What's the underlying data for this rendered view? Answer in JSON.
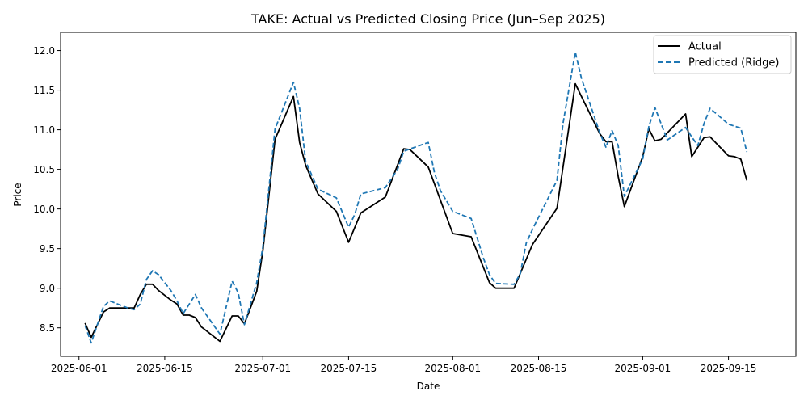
{
  "chart_data": {
    "type": "line",
    "title": "TAKE: Actual vs Predicted Closing Price (Jun–Sep 2025)",
    "xlabel": "Date",
    "ylabel": "Price",
    "xlim": [
      "2025-05-29",
      "2025-09-26"
    ],
    "ylim": [
      8.14,
      12.23
    ],
    "x_ticks": [
      "2025-06-01",
      "2025-06-15",
      "2025-07-01",
      "2025-07-15",
      "2025-08-01",
      "2025-08-15",
      "2025-09-01",
      "2025-09-15"
    ],
    "y_ticks": [
      8.5,
      9.0,
      9.5,
      10.0,
      10.5,
      11.0,
      11.5,
      12.0
    ],
    "y_tick_labels": [
      "8.5",
      "9.0",
      "9.5",
      "10.0",
      "10.5",
      "11.0",
      "11.5",
      "12.0"
    ],
    "grid": false,
    "legend_position": "top-right",
    "series": [
      {
        "name": "Actual",
        "color": "#000000",
        "style": "solid",
        "points": [
          [
            "2025-06-02",
            8.56
          ],
          [
            "2025-06-03",
            8.38
          ],
          [
            "2025-06-05",
            8.7
          ],
          [
            "2025-06-06",
            8.75
          ],
          [
            "2025-06-09",
            8.75
          ],
          [
            "2025-06-10",
            8.75
          ],
          [
            "2025-06-11",
            8.92
          ],
          [
            "2025-06-12",
            9.05
          ],
          [
            "2025-06-13",
            9.05
          ],
          [
            "2025-06-14",
            8.97
          ],
          [
            "2025-06-16",
            8.85
          ],
          [
            "2025-06-17",
            8.8
          ],
          [
            "2025-06-18",
            8.66
          ],
          [
            "2025-06-19",
            8.66
          ],
          [
            "2025-06-20",
            8.63
          ],
          [
            "2025-06-21",
            8.51
          ],
          [
            "2025-06-24",
            8.33
          ],
          [
            "2025-06-26",
            8.65
          ],
          [
            "2025-06-27",
            8.65
          ],
          [
            "2025-06-28",
            8.55
          ],
          [
            "2025-06-30",
            8.96
          ],
          [
            "2025-07-01",
            9.47
          ],
          [
            "2025-07-03",
            10.88
          ],
          [
            "2025-07-06",
            11.42
          ],
          [
            "2025-07-07",
            10.84
          ],
          [
            "2025-07-08",
            10.55
          ],
          [
            "2025-07-10",
            10.19
          ],
          [
            "2025-07-13",
            9.97
          ],
          [
            "2025-07-15",
            9.58
          ],
          [
            "2025-07-17",
            9.95
          ],
          [
            "2025-07-21",
            10.15
          ],
          [
            "2025-07-24",
            10.76
          ],
          [
            "2025-07-25",
            10.75
          ],
          [
            "2025-07-28",
            10.53
          ],
          [
            "2025-08-01",
            9.69
          ],
          [
            "2025-08-04",
            9.65
          ],
          [
            "2025-08-07",
            9.07
          ],
          [
            "2025-08-08",
            9.0
          ],
          [
            "2025-08-11",
            9.0
          ],
          [
            "2025-08-14",
            9.55
          ],
          [
            "2025-08-18",
            10.01
          ],
          [
            "2025-08-21",
            11.58
          ],
          [
            "2025-08-22",
            11.42
          ],
          [
            "2025-08-25",
            10.95
          ],
          [
            "2025-08-26",
            10.85
          ],
          [
            "2025-08-27",
            10.85
          ],
          [
            "2025-08-28",
            10.41
          ],
          [
            "2025-08-29",
            10.03
          ],
          [
            "2025-09-01",
            10.66
          ],
          [
            "2025-09-02",
            11.01
          ],
          [
            "2025-09-03",
            10.86
          ],
          [
            "2025-09-04",
            10.88
          ],
          [
            "2025-09-08",
            11.2
          ],
          [
            "2025-09-09",
            10.66
          ],
          [
            "2025-09-11",
            10.9
          ],
          [
            "2025-09-12",
            10.91
          ],
          [
            "2025-09-15",
            10.67
          ],
          [
            "2025-09-16",
            10.66
          ],
          [
            "2025-09-17",
            10.63
          ],
          [
            "2025-09-18",
            10.36
          ]
        ]
      },
      {
        "name": "Predicted (Ridge)",
        "color": "#1f77b4",
        "style": "dashed",
        "points": [
          [
            "2025-06-02",
            8.53
          ],
          [
            "2025-06-03",
            8.31
          ],
          [
            "2025-06-05",
            8.77
          ],
          [
            "2025-06-06",
            8.84
          ],
          [
            "2025-06-09",
            8.75
          ],
          [
            "2025-06-10",
            8.73
          ],
          [
            "2025-06-11",
            8.8
          ],
          [
            "2025-06-12",
            9.11
          ],
          [
            "2025-06-13",
            9.22
          ],
          [
            "2025-06-14",
            9.17
          ],
          [
            "2025-06-16",
            8.97
          ],
          [
            "2025-06-17",
            8.84
          ],
          [
            "2025-06-18",
            8.68
          ],
          [
            "2025-06-20",
            8.92
          ],
          [
            "2025-06-21",
            8.75
          ],
          [
            "2025-06-24",
            8.42
          ],
          [
            "2025-06-26",
            9.09
          ],
          [
            "2025-06-27",
            8.94
          ],
          [
            "2025-06-28",
            8.54
          ],
          [
            "2025-06-30",
            9.07
          ],
          [
            "2025-07-01",
            9.52
          ],
          [
            "2025-07-03",
            11.01
          ],
          [
            "2025-07-06",
            11.6
          ],
          [
            "2025-07-07",
            11.27
          ],
          [
            "2025-07-08",
            10.6
          ],
          [
            "2025-07-10",
            10.25
          ],
          [
            "2025-07-13",
            10.14
          ],
          [
            "2025-07-15",
            9.77
          ],
          [
            "2025-07-16",
            9.93
          ],
          [
            "2025-07-17",
            10.19
          ],
          [
            "2025-07-21",
            10.27
          ],
          [
            "2025-07-23",
            10.5
          ],
          [
            "2025-07-24",
            10.73
          ],
          [
            "2025-07-28",
            10.84
          ],
          [
            "2025-07-29",
            10.46
          ],
          [
            "2025-07-30",
            10.23
          ],
          [
            "2025-08-01",
            9.97
          ],
          [
            "2025-08-04",
            9.88
          ],
          [
            "2025-08-06",
            9.38
          ],
          [
            "2025-08-07",
            9.17
          ],
          [
            "2025-08-08",
            9.06
          ],
          [
            "2025-08-11",
            9.05
          ],
          [
            "2025-08-12",
            9.18
          ],
          [
            "2025-08-13",
            9.57
          ],
          [
            "2025-08-14",
            9.74
          ],
          [
            "2025-08-18",
            10.36
          ],
          [
            "2025-08-19",
            11.08
          ],
          [
            "2025-08-21",
            11.98
          ],
          [
            "2025-08-22",
            11.65
          ],
          [
            "2025-08-25",
            10.96
          ],
          [
            "2025-08-26",
            10.78
          ],
          [
            "2025-08-27",
            10.99
          ],
          [
            "2025-08-28",
            10.8
          ],
          [
            "2025-08-29",
            10.16
          ],
          [
            "2025-09-01",
            10.63
          ],
          [
            "2025-09-02",
            11.04
          ],
          [
            "2025-09-03",
            11.28
          ],
          [
            "2025-09-05",
            10.87
          ],
          [
            "2025-09-08",
            11.03
          ],
          [
            "2025-09-09",
            10.91
          ],
          [
            "2025-09-10",
            10.8
          ],
          [
            "2025-09-11",
            11.08
          ],
          [
            "2025-09-12",
            11.27
          ],
          [
            "2025-09-15",
            11.07
          ],
          [
            "2025-09-17",
            11.02
          ],
          [
            "2025-09-18",
            10.72
          ]
        ]
      }
    ]
  }
}
